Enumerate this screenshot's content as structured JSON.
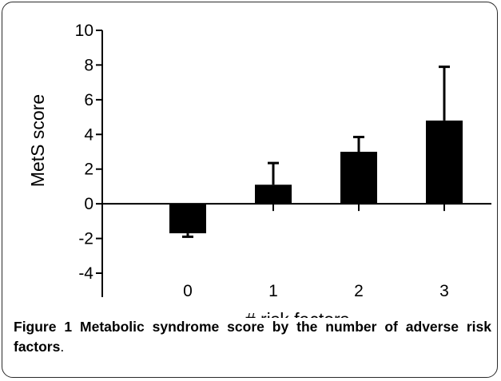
{
  "chart_data": {
    "type": "bar",
    "categories": [
      "0",
      "1",
      "2",
      "3"
    ],
    "values": [
      -1.7,
      1.1,
      3.0,
      4.8
    ],
    "error_bars": [
      {
        "lower": -1.9,
        "upper": -1.7
      },
      {
        "lower": 1.1,
        "upper": 2.35
      },
      {
        "lower": 3.0,
        "upper": 3.85
      },
      {
        "lower": 4.8,
        "upper": 7.9
      }
    ],
    "xlabel": "# risk factors",
    "ylabel": "MetS score",
    "ylim": [
      -4,
      10
    ],
    "yticks": [
      -4,
      -2,
      0,
      2,
      4,
      6,
      8,
      10
    ],
    "ytick_labels": [
      "-4",
      "-2",
      "0",
      "2",
      "4",
      "6",
      "8",
      "10"
    ],
    "bar_color": "#000000",
    "grid": false
  },
  "caption": {
    "label": "Figure 1",
    "text": "Metabolic syndrome score by the number of adverse risk factors",
    "end": "."
  }
}
